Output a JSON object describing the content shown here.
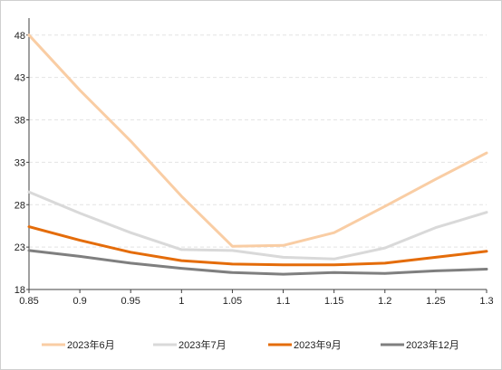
{
  "chart_data": {
    "type": "line",
    "title": "",
    "xlabel": "",
    "ylabel": "",
    "x": [
      0.85,
      0.9,
      0.95,
      1,
      1.05,
      1.1,
      1.15,
      1.2,
      1.25,
      1.3
    ],
    "x_tick_labels": [
      "0.85",
      "0.9",
      "0.95",
      "1",
      "1.05",
      "1.1",
      "1.15",
      "1.2",
      "1.25",
      "1.3"
    ],
    "xlim": [
      0.85,
      1.3
    ],
    "ylim": [
      18,
      50
    ],
    "y_ticks": [
      18,
      23,
      28,
      33,
      38,
      43,
      48
    ],
    "y_tick_labels": [
      "18",
      "23",
      "28",
      "33",
      "38",
      "43",
      "48"
    ],
    "grid": "horizontal dashed",
    "legend_position": "bottom",
    "series": [
      {
        "name": "2023年6月",
        "color": "#f9cda4",
        "values": [
          48.0,
          41.5,
          35.5,
          29.0,
          23.1,
          23.2,
          24.7,
          27.8,
          31.0,
          34.1
        ]
      },
      {
        "name": "2023年7月",
        "color": "#d9d9d9",
        "values": [
          29.5,
          27.0,
          24.7,
          22.7,
          22.6,
          21.8,
          21.6,
          22.9,
          25.3,
          27.1
        ]
      },
      {
        "name": "2023年9月",
        "color": "#e46c0a",
        "values": [
          25.4,
          23.8,
          22.4,
          21.4,
          21.0,
          20.9,
          20.9,
          21.1,
          21.8,
          22.5
        ]
      },
      {
        "name": "2023年12月",
        "color": "#7f7f7f",
        "values": [
          22.6,
          21.9,
          21.1,
          20.5,
          20.0,
          19.8,
          20.0,
          19.9,
          20.2,
          20.4
        ]
      }
    ]
  }
}
